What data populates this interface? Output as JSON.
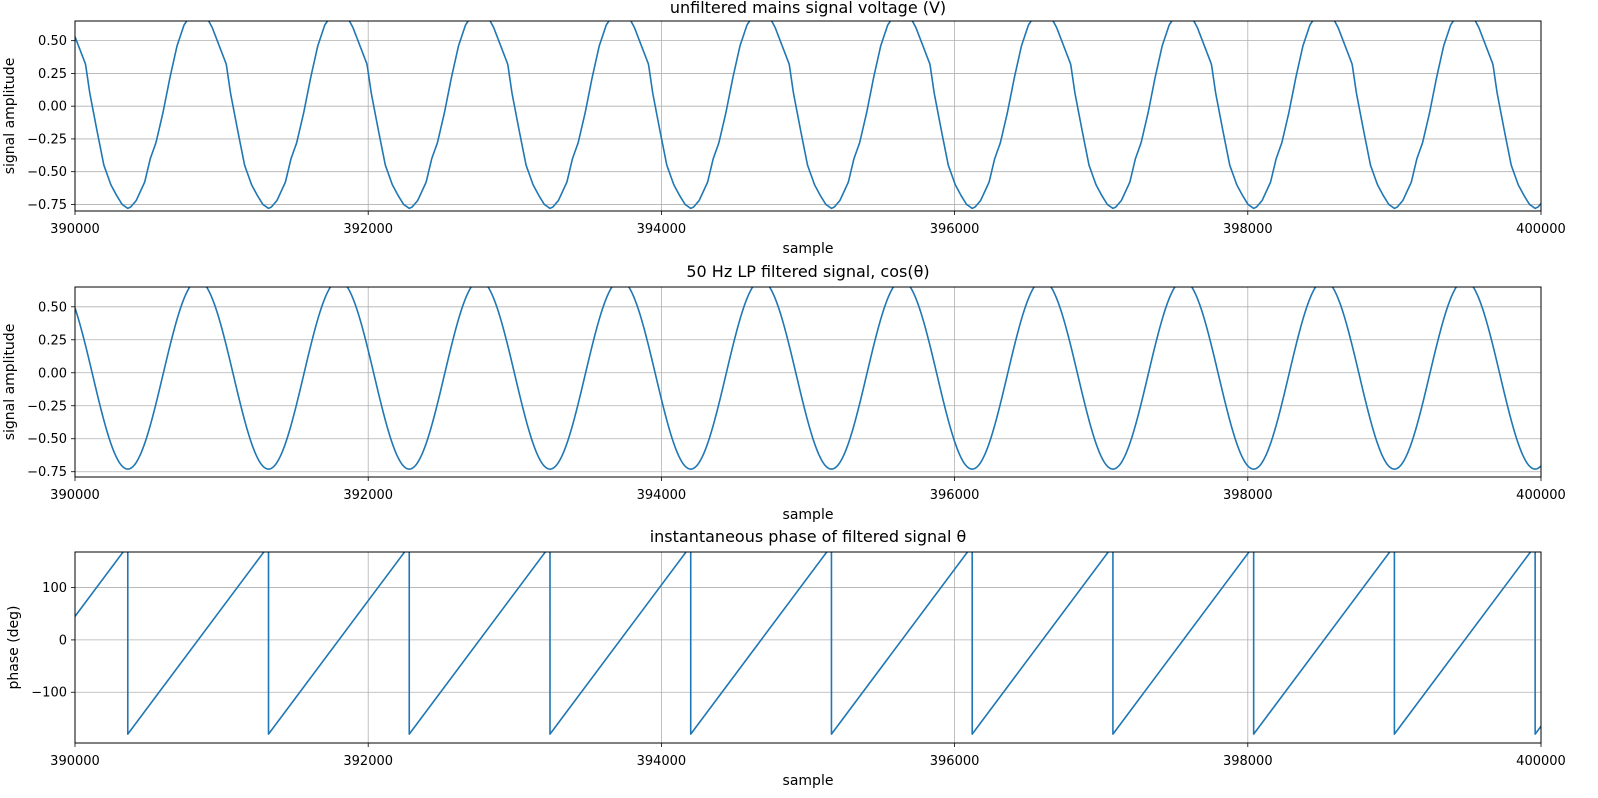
{
  "chart_data": [
    {
      "type": "line",
      "title": "unfiltered mains signal voltage (V)",
      "xlabel": "sample",
      "ylabel": "signal amplitude",
      "xlim": [
        390000,
        400000
      ],
      "ylim": [
        -0.8,
        0.65
      ],
      "xticks": [
        390000,
        392000,
        394000,
        396000,
        398000,
        400000
      ],
      "xtick_labels": [
        "390000",
        "392000",
        "394000",
        "396000",
        "398000",
        "400000"
      ],
      "yticks": [
        0.5,
        0.25,
        0.0,
        -0.25,
        -0.5,
        -0.75
      ],
      "ytick_labels": [
        "0.50",
        "0.25",
        "0.00",
        "−0.25",
        "−0.50",
        "−0.75"
      ],
      "grid": true,
      "series": [
        {
          "color": "#1f77b4",
          "waveform": "distorted sinusoid with flattened peaks, clipped at top",
          "period_samples": 960,
          "max": 0.73,
          "min": -0.78,
          "value_at_x0": 0.5,
          "troughs_x": [
            390360,
            391320,
            392280,
            393240,
            394200,
            395160,
            396120,
            397080,
            398040,
            399000,
            399960
          ],
          "peaks_x": [
            390840,
            391800,
            392760,
            393720,
            394680,
            395640,
            396600,
            397560,
            398520,
            399480
          ]
        }
      ]
    },
    {
      "type": "line",
      "title": "50 Hz LP filtered signal, cos(θ)",
      "xlabel": "sample",
      "ylabel": "signal amplitude",
      "xlim": [
        390000,
        400000
      ],
      "ylim": [
        -0.79,
        0.65
      ],
      "xticks": [
        390000,
        392000,
        394000,
        396000,
        398000,
        400000
      ],
      "xtick_labels": [
        "390000",
        "392000",
        "394000",
        "396000",
        "398000",
        "400000"
      ],
      "yticks": [
        0.5,
        0.25,
        0.0,
        -0.25,
        -0.5,
        -0.75
      ],
      "ytick_labels": [
        "0.50",
        "0.25",
        "0.00",
        "−0.25",
        "−0.50",
        "−0.75"
      ],
      "grid": true,
      "series": [
        {
          "color": "#1f77b4",
          "waveform": "sinusoid, clipped at top",
          "period_samples": 960,
          "max": 0.7,
          "min": -0.73,
          "value_at_x0": 0.55,
          "troughs_x": [
            390360,
            391320,
            392280,
            393240,
            394200,
            395160,
            396120,
            397080,
            398040,
            399000,
            399960
          ]
        }
      ]
    },
    {
      "type": "line",
      "title": "instantaneous phase of filtered signal θ",
      "xlabel": "sample",
      "ylabel": "phase (deg)",
      "xlim": [
        390000,
        400000
      ],
      "ylim": [
        -197,
        168
      ],
      "xticks": [
        390000,
        392000,
        394000,
        396000,
        398000,
        400000
      ],
      "xtick_labels": [
        "390000",
        "392000",
        "394000",
        "396000",
        "398000",
        "400000"
      ],
      "yticks": [
        100,
        0,
        -100
      ],
      "ytick_labels": [
        "100",
        "0",
        "−100"
      ],
      "grid": true,
      "series": [
        {
          "color": "#1f77b4",
          "waveform": "sawtooth rising from -180 to 180 then wrapping",
          "period_samples": 960,
          "value_at_x0": 45,
          "low": -180,
          "high": 180,
          "wrap_x": [
            390360,
            391320,
            392280,
            393240,
            394200,
            395160,
            396120,
            397080,
            398040,
            399000,
            399960
          ]
        }
      ]
    }
  ]
}
